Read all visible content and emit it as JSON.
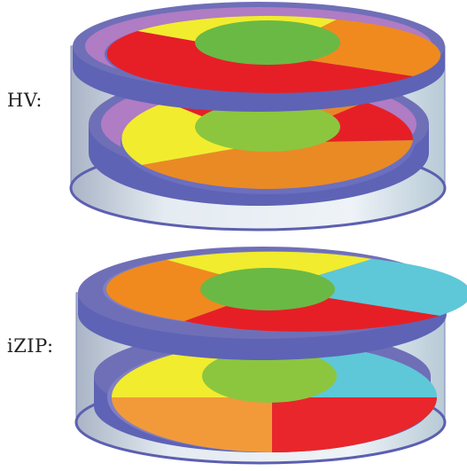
{
  "diagrams": [
    {
      "label": "HV:",
      "top_face_segments": [
        "yellow",
        "orange",
        "red"
      ],
      "bottom_face_segments": [
        "yellow",
        "orange",
        "red"
      ]
    },
    {
      "label": "iZIP:",
      "top_face_segments": [
        "yellow",
        "cyan",
        "red",
        "orange"
      ],
      "bottom_face_segments": [
        "yellow",
        "cyan",
        "red",
        "orange"
      ]
    }
  ],
  "colors": {
    "yellow": "#f2ec2e",
    "orange": "#f08a1e",
    "red": "#e61f26",
    "cyan": "#5ec8d8",
    "green_center": "#6ab945",
    "outer_ring": "#6f6fb8",
    "inner_ring_hv": "#b07cc4",
    "housing_wall": "#c8d6e0"
  }
}
